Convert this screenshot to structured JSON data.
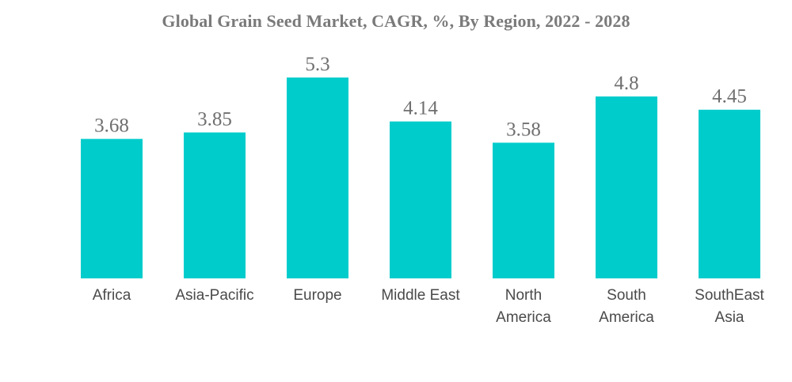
{
  "chart_data": {
    "type": "bar",
    "title": "Global Grain Seed Market, CAGR, %, By Region, 2022 - 2028",
    "categories": [
      "Africa",
      "Asia-Pacific",
      "Europe",
      "Middle East",
      "North America",
      "South America",
      "SouthEast Asia"
    ],
    "category_lines": [
      [
        "Africa"
      ],
      [
        "Asia-Pacific"
      ],
      [
        "Europe"
      ],
      [
        "Middle East"
      ],
      [
        "North",
        "America"
      ],
      [
        "South",
        "America"
      ],
      [
        "SouthEast",
        "Asia"
      ]
    ],
    "values": [
      3.68,
      3.85,
      5.3,
      4.14,
      3.58,
      4.8,
      4.45
    ],
    "value_labels": [
      "3.68",
      "3.85",
      "5.3",
      "4.14",
      "3.58",
      "4.8",
      "4.45"
    ],
    "ylim": [
      0,
      5.3
    ],
    "grid": false,
    "legend": "none",
    "bar_color": "#00cccc"
  }
}
